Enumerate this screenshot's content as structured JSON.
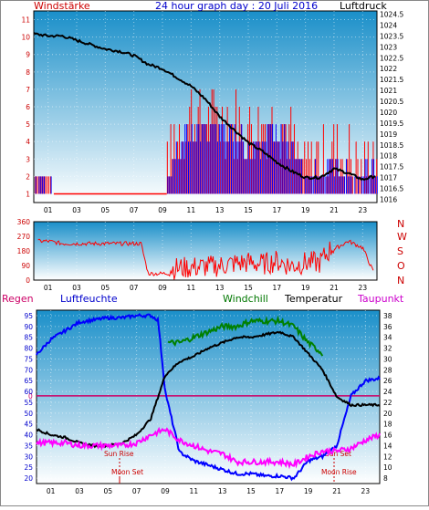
{
  "header": {
    "left_label": "Windstärke",
    "title": "24 hour graph day : 20 Juli 2016",
    "right_label": "Luftdruck"
  },
  "lower_header": {
    "regen": "Regen",
    "luftfeuchte": "Luftfeuchte",
    "windchill": "Windchill",
    "temperatur": "Temperatur",
    "taupunkt": "Taupunkt"
  },
  "hours": [
    "01",
    "03",
    "05",
    "07",
    "09",
    "11",
    "13",
    "15",
    "17",
    "19",
    "21",
    "23"
  ],
  "annotations": {
    "sun_rise": "Sun Rise",
    "moon_set": "Moon Set",
    "sun_set": "Sun Set",
    "moon_rise": "Moon Rise",
    "zero_mark": "0"
  },
  "colors": {
    "wind_avg": "#0000ff",
    "wind_gust": "#ff0000",
    "pressure": "#000000",
    "direction": "#ff0000",
    "humidity": "#0000ff",
    "temperature": "#000000",
    "windchill": "#008000",
    "dewpoint": "#ff00ff",
    "rain_line": "#cc0066",
    "plot_bg_top": "#1a8fc9",
    "plot_bg_bottom": "#ffffff"
  },
  "chart_data": [
    {
      "type": "line",
      "panel": "wind_pressure",
      "x_unit": "hour",
      "xlim": [
        0,
        24
      ],
      "left_axis": {
        "ticks": [
          1,
          2,
          3,
          4,
          5,
          6,
          7,
          8,
          9,
          10,
          11
        ],
        "ylim": [
          0.5,
          11.5
        ]
      },
      "right_axis": {
        "ticks": [
          "1016",
          "1016.5",
          "1017",
          "1017.5",
          "1018",
          "1018.5",
          "1019",
          "1019.5",
          "1020",
          "1020.5",
          "1021",
          "1021.5",
          "1022",
          "1022.5",
          "1023",
          "1023.5",
          "1024",
          "1024.5"
        ],
        "ylim": [
          1015.85,
          1024.65
        ]
      },
      "series": [
        {
          "name": "Luftdruck",
          "axis": "right",
          "x": [
            0,
            1,
            2,
            3,
            4,
            5,
            6,
            7,
            8,
            9,
            10,
            11,
            12,
            13,
            14,
            15,
            16,
            17,
            18,
            19,
            20,
            21,
            22,
            23,
            24
          ],
          "values": [
            1023.6,
            1023.5,
            1023.5,
            1023.3,
            1023.1,
            1022.9,
            1022.8,
            1022.6,
            1022.2,
            1022.0,
            1021.6,
            1021.2,
            1020.6,
            1019.8,
            1019.2,
            1018.6,
            1018.2,
            1017.7,
            1017.3,
            1017.0,
            1017.0,
            1017.4,
            1017.2,
            1016.9,
            1017.1
          ]
        },
        {
          "name": "Windstärke",
          "axis": "left",
          "x": [
            0,
            1.2,
            1.4,
            9.3,
            9.5,
            11,
            13,
            15,
            17,
            19,
            21,
            23,
            24
          ],
          "values": [
            2,
            2,
            1,
            1,
            3,
            5,
            5,
            4,
            5,
            2,
            3,
            2,
            3
          ]
        }
      ]
    },
    {
      "type": "scatter",
      "panel": "wind_direction",
      "x_unit": "hour",
      "xlim": [
        0,
        24
      ],
      "left_axis": {
        "ticks": [
          "0",
          "90",
          "180",
          "270",
          "360"
        ],
        "ylim": [
          0,
          360
        ]
      },
      "right_axis": {
        "ticks": [
          "N",
          "W",
          "S",
          "O",
          "N"
        ]
      },
      "series": [
        {
          "name": "Windrichtung",
          "x": [
            0.5,
            1,
            2,
            3,
            4,
            5,
            6,
            7,
            7.5,
            8,
            9,
            10,
            11,
            12,
            13,
            14,
            15,
            16,
            17,
            18,
            19,
            20,
            21,
            22,
            23,
            24
          ],
          "values": [
            240,
            240,
            225,
            225,
            225,
            225,
            225,
            225,
            225,
            40,
            40,
            45,
            50,
            55,
            60,
            75,
            80,
            70,
            90,
            60,
            80,
            80,
            190,
            240,
            200,
            0
          ]
        }
      ]
    },
    {
      "type": "line",
      "panel": "temp_humidity",
      "x_unit": "hour",
      "xlim": [
        0,
        24
      ],
      "left_axis": {
        "ticks": [
          "20",
          "25",
          "30",
          "35",
          "40",
          "45",
          "50",
          "55",
          "60",
          "65",
          "70",
          "75",
          "80",
          "85",
          "90",
          "95"
        ],
        "ylim": [
          17.5,
          97.5
        ]
      },
      "right_axis": {
        "ticks": [
          "8",
          "10",
          "12",
          "14",
          "16",
          "18",
          "20",
          "22",
          "24",
          "26",
          "28",
          "30",
          "32",
          "34",
          "36",
          "38"
        ],
        "ylim": [
          7,
          39
        ]
      },
      "series": [
        {
          "name": "Luftfeuchte",
          "axis": "left",
          "x": [
            0,
            1,
            2,
            3,
            4,
            5,
            6,
            7,
            8,
            8.5,
            9,
            10,
            11,
            12,
            13,
            14,
            15,
            16,
            17,
            18,
            19,
            20,
            21,
            22,
            23,
            24
          ],
          "values": [
            77,
            84,
            88,
            92,
            93,
            94,
            94,
            95,
            95,
            93,
            60,
            32,
            28,
            26,
            24,
            22,
            22,
            21,
            21,
            20,
            28,
            30,
            35,
            58,
            65,
            66
          ]
        },
        {
          "name": "Temperatur",
          "axis": "right",
          "x": [
            0,
            1,
            2,
            3,
            4,
            5,
            6,
            7,
            8,
            8.5,
            9,
            10,
            11,
            12,
            13,
            14,
            15,
            16,
            17,
            18,
            19,
            20,
            21,
            22,
            23,
            24
          ],
          "values": [
            17,
            16,
            15.5,
            14.5,
            14,
            14,
            14.5,
            16,
            19,
            23,
            27,
            29.5,
            30.5,
            32,
            33,
            34,
            34,
            34.5,
            35,
            34,
            31,
            28,
            23,
            21.5,
            21.5,
            21.5
          ]
        },
        {
          "name": "Windchill",
          "axis": "right",
          "x": [
            9.2,
            10,
            11,
            12,
            13,
            14,
            15,
            16,
            17,
            18,
            19,
            20
          ],
          "values": [
            33,
            33,
            34,
            35,
            36,
            36,
            37,
            37,
            37,
            36,
            33,
            31
          ]
        },
        {
          "name": "Taupunkt",
          "axis": "right",
          "x": [
            0,
            1,
            2,
            3,
            4,
            5,
            6,
            7,
            8,
            9,
            10,
            11,
            12,
            13,
            14,
            15,
            16,
            17,
            18,
            19,
            20,
            21,
            22,
            23,
            24
          ],
          "values": [
            14.5,
            14.5,
            14.5,
            14,
            14,
            14,
            14,
            14.5,
            16,
            17,
            15,
            14,
            13,
            12.5,
            11,
            11,
            11,
            11,
            10.5,
            12,
            13,
            13,
            13.5,
            15,
            16
          ]
        }
      ]
    }
  ]
}
